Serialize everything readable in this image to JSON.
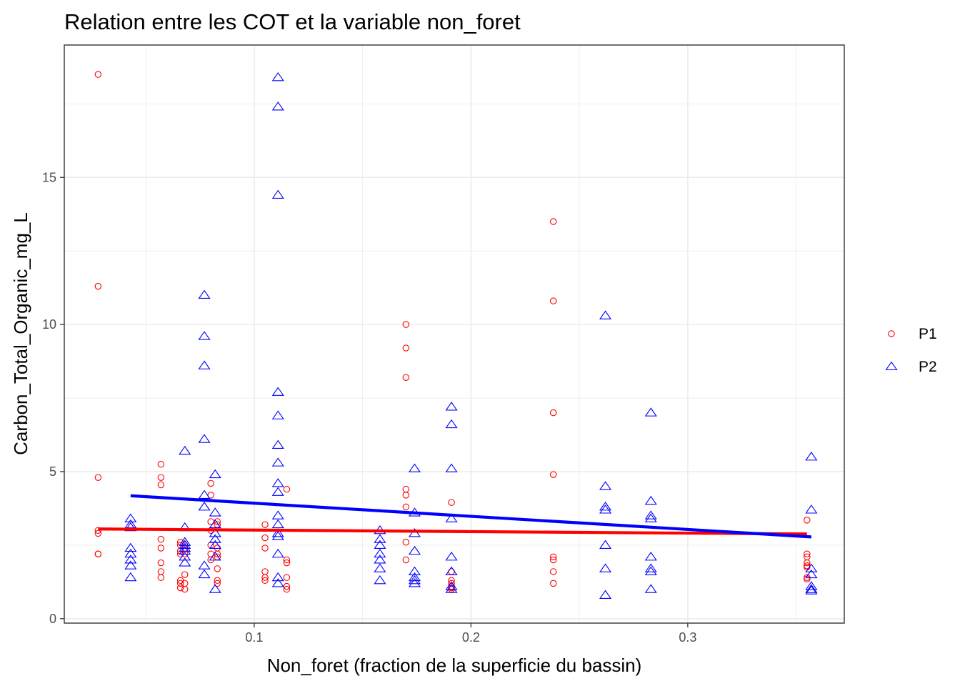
{
  "chart_data": {
    "type": "scatter",
    "title": "Relation entre les COT et la variable non_foret",
    "xlabel": "Non_foret (fraction de la superficie du bassin)",
    "ylabel": "Carbon_Total_Organic_mg_L",
    "xlim": [
      0.0124,
      0.3722
    ],
    "ylim": [
      -0.15,
      19.5
    ],
    "x_ticks": [
      0.1,
      0.2,
      0.3
    ],
    "x_tick_labels": [
      "0.1",
      "0.2",
      "0.3"
    ],
    "y_ticks": [
      0,
      5,
      10,
      15
    ],
    "y_tick_labels": [
      "0",
      "5",
      "10",
      "15"
    ],
    "grid": true,
    "legend": "right",
    "series": [
      {
        "name": "P1",
        "color": "#ff0000",
        "marker": "circle-open",
        "points": [
          [
            0.028,
            18.5
          ],
          [
            0.028,
            11.3
          ],
          [
            0.028,
            4.8
          ],
          [
            0.028,
            3.0
          ],
          [
            0.028,
            2.9
          ],
          [
            0.028,
            2.2
          ],
          [
            0.028,
            2.2
          ],
          [
            0.057,
            5.25
          ],
          [
            0.057,
            4.8
          ],
          [
            0.057,
            4.55
          ],
          [
            0.057,
            2.7
          ],
          [
            0.057,
            2.4
          ],
          [
            0.057,
            1.9
          ],
          [
            0.057,
            1.6
          ],
          [
            0.057,
            1.4
          ],
          [
            0.066,
            2.6
          ],
          [
            0.066,
            2.5
          ],
          [
            0.066,
            2.3
          ],
          [
            0.066,
            2.2
          ],
          [
            0.066,
            1.3
          ],
          [
            0.066,
            1.2
          ],
          [
            0.066,
            1.05
          ],
          [
            0.068,
            2.5
          ],
          [
            0.068,
            2.4
          ],
          [
            0.068,
            2.2
          ],
          [
            0.068,
            1.5
          ],
          [
            0.068,
            1.2
          ],
          [
            0.068,
            1.0
          ],
          [
            0.08,
            4.6
          ],
          [
            0.08,
            4.2
          ],
          [
            0.08,
            3.3
          ],
          [
            0.08,
            3.0
          ],
          [
            0.08,
            2.5
          ],
          [
            0.08,
            2.2
          ],
          [
            0.08,
            2.0
          ],
          [
            0.083,
            3.3
          ],
          [
            0.083,
            3.2
          ],
          [
            0.083,
            2.4
          ],
          [
            0.083,
            2.2
          ],
          [
            0.083,
            2.1
          ],
          [
            0.083,
            1.7
          ],
          [
            0.083,
            1.3
          ],
          [
            0.083,
            1.2
          ],
          [
            0.105,
            3.2
          ],
          [
            0.105,
            2.75
          ],
          [
            0.105,
            2.4
          ],
          [
            0.105,
            1.6
          ],
          [
            0.105,
            1.4
          ],
          [
            0.105,
            1.3
          ],
          [
            0.115,
            4.4
          ],
          [
            0.115,
            2.0
          ],
          [
            0.115,
            1.9
          ],
          [
            0.115,
            1.4
          ],
          [
            0.115,
            1.1
          ],
          [
            0.115,
            1.0
          ],
          [
            0.17,
            10.0
          ],
          [
            0.17,
            9.2
          ],
          [
            0.17,
            8.2
          ],
          [
            0.17,
            4.4
          ],
          [
            0.17,
            4.2
          ],
          [
            0.17,
            3.8
          ],
          [
            0.17,
            2.6
          ],
          [
            0.17,
            2.0
          ],
          [
            0.191,
            3.95
          ],
          [
            0.191,
            1.6
          ],
          [
            0.191,
            1.3
          ],
          [
            0.191,
            1.2
          ],
          [
            0.191,
            1.1
          ],
          [
            0.191,
            1.05
          ],
          [
            0.191,
            1.0
          ],
          [
            0.238,
            13.5
          ],
          [
            0.238,
            10.8
          ],
          [
            0.238,
            7.0
          ],
          [
            0.238,
            4.9
          ],
          [
            0.238,
            2.1
          ],
          [
            0.238,
            2.0
          ],
          [
            0.238,
            1.6
          ],
          [
            0.238,
            1.2
          ],
          [
            0.355,
            3.35
          ],
          [
            0.355,
            2.2
          ],
          [
            0.355,
            2.1
          ],
          [
            0.355,
            1.9
          ],
          [
            0.355,
            1.8
          ],
          [
            0.355,
            1.75
          ],
          [
            0.355,
            1.4
          ],
          [
            0.355,
            1.35
          ]
        ],
        "trend": [
          [
            0.028,
            3.05
          ],
          [
            0.355,
            2.88
          ]
        ]
      },
      {
        "name": "P2",
        "color": "#0000ff",
        "marker": "triangle-open",
        "points": [
          [
            0.043,
            3.4
          ],
          [
            0.043,
            3.2
          ],
          [
            0.043,
            3.1
          ],
          [
            0.043,
            2.4
          ],
          [
            0.043,
            2.2
          ],
          [
            0.043,
            2.0
          ],
          [
            0.043,
            1.8
          ],
          [
            0.043,
            1.4
          ],
          [
            0.068,
            5.7
          ],
          [
            0.068,
            3.1
          ],
          [
            0.068,
            2.6
          ],
          [
            0.068,
            2.5
          ],
          [
            0.068,
            2.4
          ],
          [
            0.068,
            2.3
          ],
          [
            0.068,
            2.1
          ],
          [
            0.068,
            1.9
          ],
          [
            0.077,
            11.0
          ],
          [
            0.077,
            9.6
          ],
          [
            0.077,
            8.6
          ],
          [
            0.077,
            6.1
          ],
          [
            0.077,
            4.2
          ],
          [
            0.077,
            3.8
          ],
          [
            0.077,
            1.8
          ],
          [
            0.077,
            1.5
          ],
          [
            0.082,
            4.9
          ],
          [
            0.082,
            3.6
          ],
          [
            0.082,
            3.2
          ],
          [
            0.082,
            2.9
          ],
          [
            0.082,
            2.7
          ],
          [
            0.082,
            2.5
          ],
          [
            0.082,
            2.1
          ],
          [
            0.082,
            1.0
          ],
          [
            0.111,
            18.4
          ],
          [
            0.111,
            17.4
          ],
          [
            0.111,
            14.4
          ],
          [
            0.111,
            7.7
          ],
          [
            0.111,
            6.9
          ],
          [
            0.111,
            5.9
          ],
          [
            0.111,
            5.3
          ],
          [
            0.111,
            4.6
          ],
          [
            0.111,
            4.3
          ],
          [
            0.111,
            3.5
          ],
          [
            0.111,
            3.2
          ],
          [
            0.111,
            2.9
          ],
          [
            0.111,
            2.8
          ],
          [
            0.111,
            2.2
          ],
          [
            0.111,
            1.4
          ],
          [
            0.111,
            1.2
          ],
          [
            0.158,
            3.0
          ],
          [
            0.158,
            2.7
          ],
          [
            0.158,
            2.5
          ],
          [
            0.158,
            2.2
          ],
          [
            0.158,
            2.0
          ],
          [
            0.158,
            1.7
          ],
          [
            0.158,
            1.3
          ],
          [
            0.174,
            5.1
          ],
          [
            0.174,
            3.6
          ],
          [
            0.174,
            2.9
          ],
          [
            0.174,
            2.3
          ],
          [
            0.174,
            1.6
          ],
          [
            0.174,
            1.4
          ],
          [
            0.174,
            1.3
          ],
          [
            0.174,
            1.2
          ],
          [
            0.191,
            7.2
          ],
          [
            0.191,
            6.6
          ],
          [
            0.191,
            5.1
          ],
          [
            0.191,
            3.4
          ],
          [
            0.191,
            2.1
          ],
          [
            0.191,
            1.6
          ],
          [
            0.191,
            1.1
          ],
          [
            0.191,
            1.0
          ],
          [
            0.262,
            10.3
          ],
          [
            0.262,
            4.5
          ],
          [
            0.262,
            3.8
          ],
          [
            0.262,
            3.7
          ],
          [
            0.262,
            2.5
          ],
          [
            0.262,
            1.7
          ],
          [
            0.262,
            0.8
          ],
          [
            0.283,
            7.0
          ],
          [
            0.283,
            4.0
          ],
          [
            0.283,
            3.5
          ],
          [
            0.283,
            3.4
          ],
          [
            0.283,
            2.1
          ],
          [
            0.283,
            1.7
          ],
          [
            0.283,
            1.6
          ],
          [
            0.283,
            1.0
          ],
          [
            0.357,
            5.5
          ],
          [
            0.357,
            3.7
          ],
          [
            0.357,
            1.7
          ],
          [
            0.357,
            1.5
          ],
          [
            0.357,
            1.1
          ],
          [
            0.357,
            1.0
          ],
          [
            0.357,
            0.95
          ]
        ],
        "trend": [
          [
            0.043,
            4.18
          ],
          [
            0.357,
            2.78
          ]
        ]
      }
    ]
  }
}
